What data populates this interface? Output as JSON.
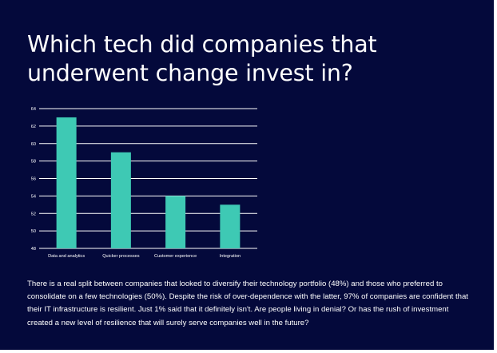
{
  "page": {
    "title": "Which tech did companies that underwent change invest in?",
    "body": "There is a real split between companies that looked to diversify their technology portfolio (48%) and those who preferred to consolidate on a few technologies (50%). Despite the risk of over-dependence with the latter, 97% of companies are confident that their IT infrastructure is resilient. Just 1% said that it definitely isn't. Are people living in denial? Or has the rush of investment created a new level of resilience that will surely serve companies well in the future?",
    "colors": {
      "background": "#04093b",
      "bar": "#3ec9b4",
      "text": "#ffffff"
    }
  },
  "chart_data": {
    "type": "bar",
    "title": "",
    "xlabel": "",
    "ylabel": "",
    "categories": [
      "Data and analytics",
      "Quicker processes",
      "Customer experience",
      "Integration"
    ],
    "values": [
      63,
      59,
      54,
      53
    ],
    "ylim": [
      48,
      64
    ],
    "yticks": [
      48,
      50,
      52,
      54,
      56,
      58,
      60,
      62,
      64
    ],
    "grid": true,
    "legend": "none"
  }
}
